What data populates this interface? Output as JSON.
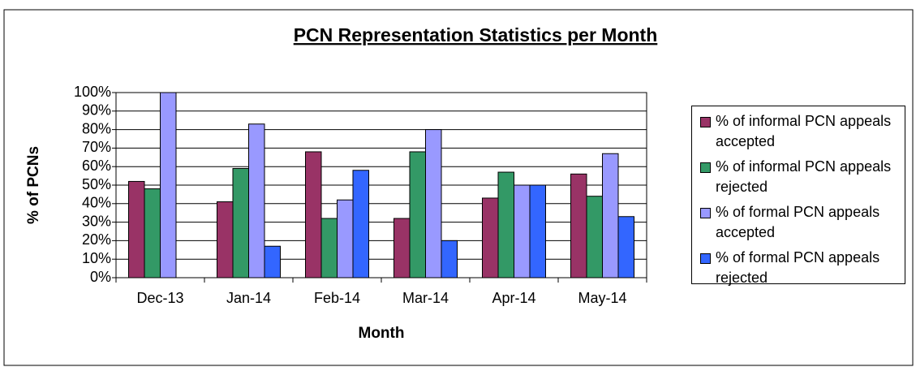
{
  "chart_data": {
    "type": "bar",
    "title": "PCN Representation Statistics per Month",
    "x_label": "Month",
    "y_label": "% of PCNs",
    "categories": [
      "Dec-13",
      "Jan-14",
      "Feb-14",
      "Mar-14",
      "Apr-14",
      "May-14"
    ],
    "series": [
      {
        "name": "% of informal PCN appeals accepted",
        "color": "#993366",
        "values": [
          52,
          41,
          68,
          32,
          43,
          56
        ]
      },
      {
        "name": "% of informal PCN appeals rejected",
        "color": "#339966",
        "values": [
          48,
          59,
          32,
          68,
          57,
          44
        ]
      },
      {
        "name": "% of formal PCN appeals accepted",
        "color": "#9999ff",
        "values": [
          100,
          83,
          42,
          80,
          50,
          67
        ]
      },
      {
        "name": "% of formal PCN appeals rejected",
        "color": "#3366ff",
        "values": [
          0,
          17,
          58,
          20,
          50,
          33
        ]
      }
    ],
    "ylim": [
      0,
      100
    ],
    "yticks": [
      {
        "value": 0,
        "label": "0%"
      },
      {
        "value": 10,
        "label": "10%"
      },
      {
        "value": 20,
        "label": "20%"
      },
      {
        "value": 30,
        "label": "30%"
      },
      {
        "value": 40,
        "label": "40%"
      },
      {
        "value": 50,
        "label": "50%"
      },
      {
        "value": 60,
        "label": "60%"
      },
      {
        "value": 70,
        "label": "70%"
      },
      {
        "value": 80,
        "label": "80%"
      },
      {
        "value": 90,
        "label": "90%"
      },
      {
        "value": 100,
        "label": "100%"
      }
    ],
    "grid": true,
    "legend": "right"
  }
}
